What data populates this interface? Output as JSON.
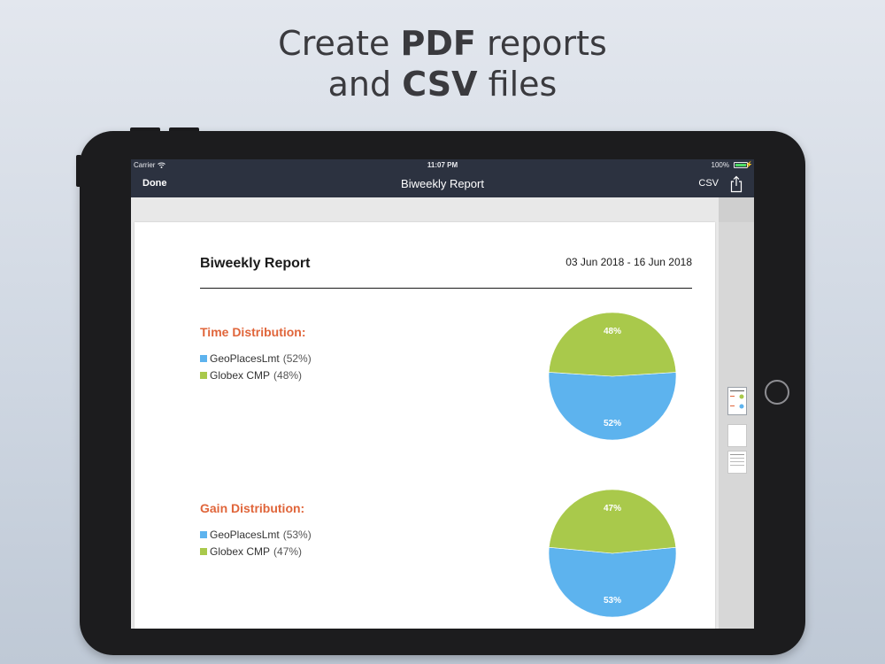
{
  "headline": {
    "line1_pre": "Create ",
    "line1_bold": "PDF",
    "line1_post": " reports",
    "line2_pre": "and ",
    "line2_bold": "CSV",
    "line2_post": " files"
  },
  "status_bar": {
    "carrier": "Carrier",
    "time": "11:07 PM",
    "battery": "100%"
  },
  "nav_bar": {
    "done_label": "Done",
    "title": "Biweekly Report",
    "csv_label": "CSV",
    "share_icon": "share-icon"
  },
  "report": {
    "title": "Biweekly Report",
    "date_range": "03 Jun 2018 - 16 Jun 2018",
    "sections": [
      {
        "title": "Time Distribution:",
        "items": [
          {
            "name": "GeoPlacesLmt",
            "pct_label": "(52%)"
          },
          {
            "name": "Globex CMP",
            "pct_label": "(48%)"
          }
        ]
      },
      {
        "title": "Gain Distribution:",
        "items": [
          {
            "name": "GeoPlacesLmt",
            "pct_label": "(53%)"
          },
          {
            "name": "Globex CMP",
            "pct_label": "(47%)"
          }
        ]
      }
    ]
  },
  "colors": {
    "geoplaces": "#5db3ee",
    "globex": "#a9c94b",
    "section_title": "#e0653a",
    "nav_bg": "#2c3240"
  },
  "chart_data": [
    {
      "type": "pie",
      "categories": [
        "GeoPlacesLmt",
        "Globex CMP"
      ],
      "values": [
        52,
        48
      ],
      "labels": [
        "52%",
        "48%"
      ],
      "colors": [
        "#5db3ee",
        "#a9c94b"
      ]
    },
    {
      "type": "pie",
      "categories": [
        "GeoPlacesLmt",
        "Globex CMP"
      ],
      "values": [
        53,
        47
      ],
      "labels": [
        "53%",
        "47%"
      ],
      "colors": [
        "#5db3ee",
        "#a9c94b"
      ]
    }
  ]
}
